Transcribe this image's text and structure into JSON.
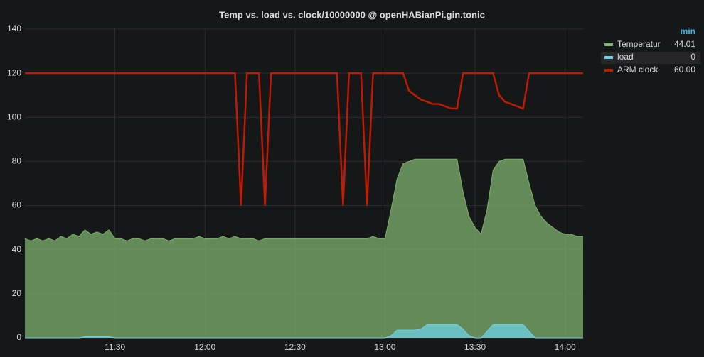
{
  "chart_data": {
    "type": "line",
    "title": "Temp vs. load vs. clock/10000000 @ openHABianPi.gin.tonic",
    "x": [
      "11:00",
      "11:02",
      "11:04",
      "11:06",
      "11:08",
      "11:10",
      "11:12",
      "11:14",
      "11:16",
      "11:18",
      "11:20",
      "11:22",
      "11:24",
      "11:26",
      "11:28",
      "11:30",
      "11:32",
      "11:34",
      "11:36",
      "11:38",
      "11:40",
      "11:42",
      "11:44",
      "11:46",
      "11:48",
      "11:50",
      "11:52",
      "11:54",
      "11:56",
      "11:58",
      "12:00",
      "12:02",
      "12:04",
      "12:06",
      "12:08",
      "12:10",
      "12:12",
      "12:14",
      "12:16",
      "12:18",
      "12:20",
      "12:22",
      "12:24",
      "12:26",
      "12:28",
      "12:30",
      "12:32",
      "12:34",
      "12:36",
      "12:38",
      "12:40",
      "12:42",
      "12:44",
      "12:46",
      "12:48",
      "12:50",
      "12:52",
      "12:54",
      "12:56",
      "12:58",
      "13:00",
      "13:02",
      "13:04",
      "13:06",
      "13:08",
      "13:10",
      "13:12",
      "13:14",
      "13:16",
      "13:18",
      "13:20",
      "13:22",
      "13:24",
      "13:26",
      "13:28",
      "13:30",
      "13:32",
      "13:34",
      "13:36",
      "13:38",
      "13:40",
      "13:42",
      "13:44",
      "13:46",
      "13:48",
      "13:50",
      "13:52",
      "13:54",
      "13:56",
      "13:58",
      "14:00",
      "14:02",
      "14:04",
      "14:06"
    ],
    "xlim": [
      "11:00",
      "14:06"
    ],
    "xticks": [
      "11:30",
      "12:00",
      "12:30",
      "13:00",
      "13:30",
      "14:00"
    ],
    "ylim": [
      0,
      140
    ],
    "yticks": [
      0,
      20,
      40,
      60,
      80,
      100,
      120,
      140
    ],
    "grid": true,
    "legend_header": "min",
    "series": [
      {
        "name": "Temperatur",
        "color": "#7eb26d",
        "fill": true,
        "min": "44.01",
        "values": [
          45,
          44,
          45,
          44,
          45,
          44,
          46,
          45,
          47,
          46,
          49,
          47,
          48,
          47,
          49,
          45,
          45,
          44,
          45,
          45,
          44,
          45,
          45,
          45,
          44,
          45,
          45,
          45,
          45,
          46,
          45,
          45,
          45,
          46,
          45,
          46,
          45,
          45,
          45,
          44,
          45,
          45,
          45,
          45,
          45,
          45,
          45,
          45,
          45,
          45,
          45,
          45,
          45,
          45,
          45,
          45,
          45,
          45,
          46,
          45,
          45,
          58,
          72,
          79,
          80,
          81,
          81,
          81,
          81,
          81,
          81,
          81,
          81,
          66,
          55,
          50,
          47,
          58,
          76,
          80,
          81,
          81,
          81,
          81,
          70,
          60,
          55,
          52,
          50,
          48,
          47,
          47,
          46,
          46
        ]
      },
      {
        "name": "load",
        "color": "#6ed0e0",
        "fill": true,
        "min": "0",
        "values": [
          0,
          0,
          0,
          0,
          0,
          0,
          0,
          0,
          0,
          0,
          0.5,
          0.5,
          0.5,
          0.5,
          0.5,
          0,
          0,
          0,
          0,
          0,
          0,
          0,
          0,
          0,
          0,
          0,
          0,
          0,
          0,
          0,
          0,
          0,
          0,
          0,
          0,
          0,
          0,
          0,
          0,
          0,
          0,
          0,
          0,
          0,
          0,
          0,
          0,
          0,
          0,
          0,
          0,
          0,
          0,
          0,
          0,
          0,
          0,
          0,
          0,
          0,
          0,
          1,
          3.5,
          3.5,
          3.5,
          3.5,
          4,
          6,
          6,
          6,
          6,
          6,
          6,
          4,
          1,
          0,
          0,
          3,
          6,
          6,
          6,
          6,
          6,
          6,
          3,
          0,
          0,
          0,
          0,
          0,
          0,
          0,
          0,
          0
        ]
      },
      {
        "name": "ARM clock",
        "color": "#bf1b00",
        "fill": false,
        "min": "60.00",
        "values": [
          120,
          120,
          120,
          120,
          120,
          120,
          120,
          120,
          120,
          120,
          120,
          120,
          120,
          120,
          120,
          120,
          120,
          120,
          120,
          120,
          120,
          120,
          120,
          120,
          120,
          120,
          120,
          120,
          120,
          120,
          120,
          120,
          120,
          120,
          120,
          120,
          60,
          120,
          120,
          120,
          60,
          120,
          120,
          120,
          120,
          120,
          120,
          120,
          120,
          120,
          120,
          120,
          120,
          60,
          120,
          120,
          120,
          60,
          120,
          120,
          120,
          120,
          120,
          120,
          112,
          110,
          108,
          107,
          106,
          106,
          105,
          104,
          104,
          120,
          120,
          120,
          120,
          120,
          120,
          110,
          107,
          106,
          105,
          104,
          120,
          120,
          120,
          120,
          120,
          120,
          120,
          120,
          120,
          120
        ]
      }
    ]
  }
}
